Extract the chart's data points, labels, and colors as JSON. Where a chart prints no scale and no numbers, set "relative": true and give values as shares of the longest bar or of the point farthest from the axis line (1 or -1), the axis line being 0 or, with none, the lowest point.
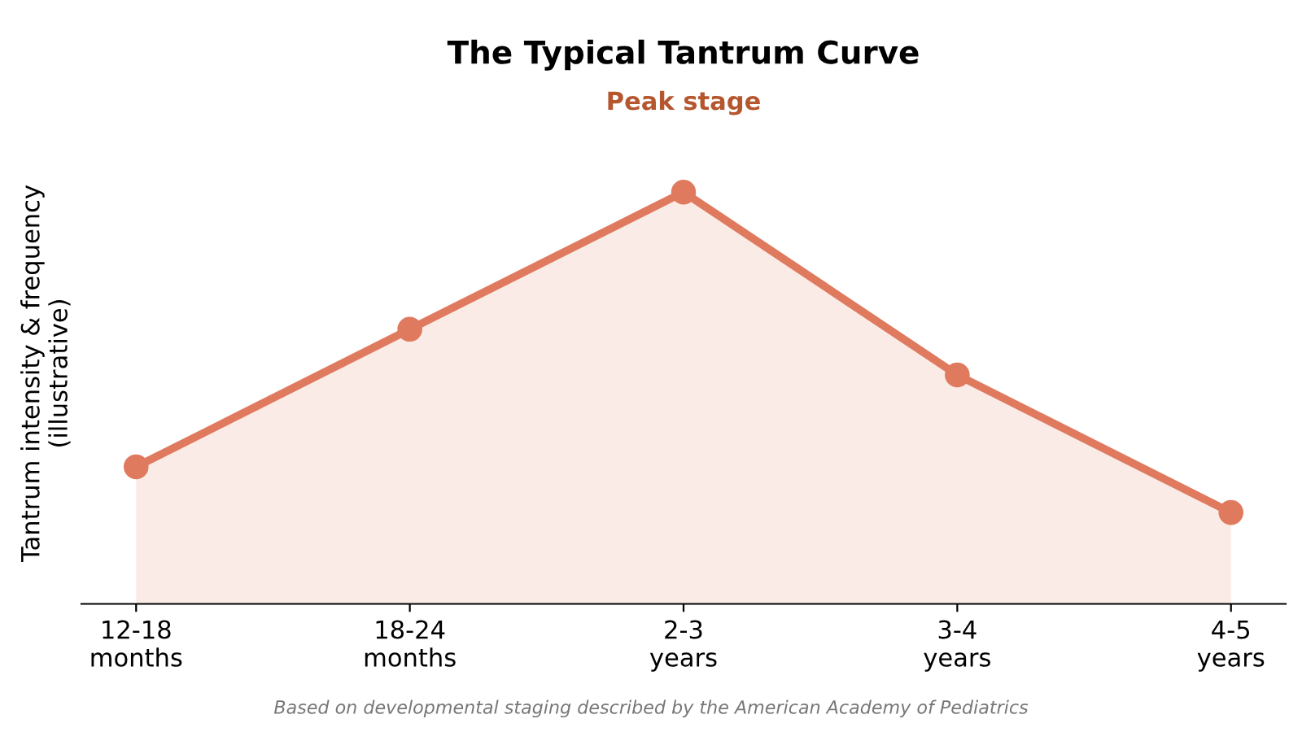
{
  "chart_data": {
    "type": "area",
    "title": "The Typical Tantrum Curve",
    "ylabel": "Tantrum intensity & frequency\n(illustrative)",
    "categories": [
      "12-18\nmonths",
      "18-24\nmonths",
      "2-3\nyears",
      "3-4\nyears",
      "4-5\nyears"
    ],
    "series": [
      {
        "color": "#e07a5f",
        "values": [
          0.333,
          0.667,
          1,
          0.556,
          0.222
        ]
      }
    ],
    "relative": true,
    "marker": "circle",
    "line_style": "solid",
    "grid": false,
    "legend": false,
    "annotations": [
      "Peak stage",
      "Based on developmental staging described by the American Academy of Pediatrics"
    ]
  }
}
